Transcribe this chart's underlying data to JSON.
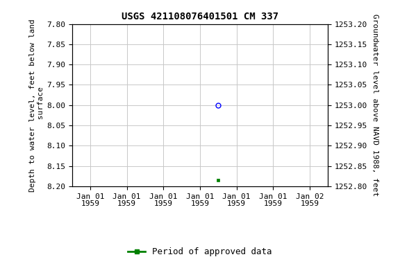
{
  "title": "USGS 421108076401501 CM 337",
  "ylabel_left": "Depth to water level, feet below land\n surface",
  "ylabel_right": "Groundwater level above NAVD 1988, feet",
  "ylim_left_top": 7.8,
  "ylim_left_bottom": 8.2,
  "ylim_right_top": 1253.2,
  "ylim_right_bottom": 1252.8,
  "yticks_left": [
    7.8,
    7.85,
    7.9,
    7.95,
    8.0,
    8.05,
    8.1,
    8.15,
    8.2
  ],
  "yticks_right": [
    1253.2,
    1253.15,
    1253.1,
    1253.05,
    1253.0,
    1252.95,
    1252.9,
    1252.85,
    1252.8
  ],
  "point_blue_x": 3.5,
  "point_blue_y": 8.0,
  "point_green_x": 3.5,
  "point_green_y": 8.185,
  "xtick_labels": [
    "Jan 01\n1959",
    "Jan 01\n1959",
    "Jan 01\n1959",
    "Jan 01\n1959",
    "Jan 01\n1959",
    "Jan 01\n1959",
    "Jan 02\n1959"
  ],
  "xtick_positions": [
    0,
    1,
    2,
    3,
    4,
    5,
    6
  ],
  "grid_color": "#c8c8c8",
  "background_color": "#ffffff",
  "legend_label": "Period of approved data",
  "legend_color": "#008000",
  "title_fontsize": 10,
  "axis_fontsize": 8,
  "tick_fontsize": 8
}
